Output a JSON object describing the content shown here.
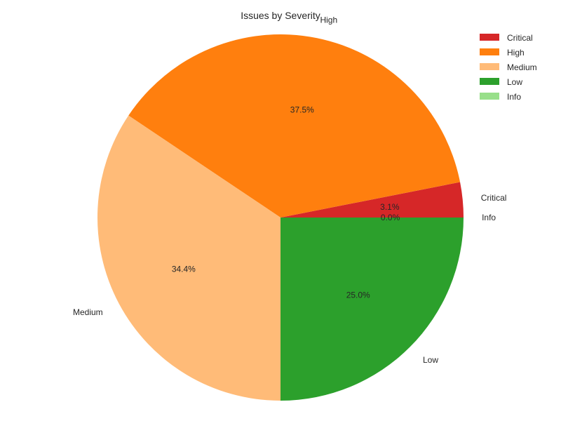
{
  "chart_data": {
    "type": "pie",
    "title": "Issues by Severity",
    "categories": [
      "Critical",
      "High",
      "Medium",
      "Low",
      "Info"
    ],
    "values": [
      3.1,
      37.5,
      34.4,
      25.0,
      0.0
    ],
    "labels": [
      "3.1%",
      "37.5%",
      "34.4%",
      "25.0%",
      "0.0%"
    ],
    "colors": [
      "#d62728",
      "#ff7f0e",
      "#ffbb78",
      "#2ca02c",
      "#98df8a"
    ],
    "start_angle_deg": 0,
    "direction": "counterclockwise",
    "legend": {
      "position": "top-right",
      "entries": [
        "Critical",
        "High",
        "Medium",
        "Low",
        "Info"
      ]
    }
  }
}
